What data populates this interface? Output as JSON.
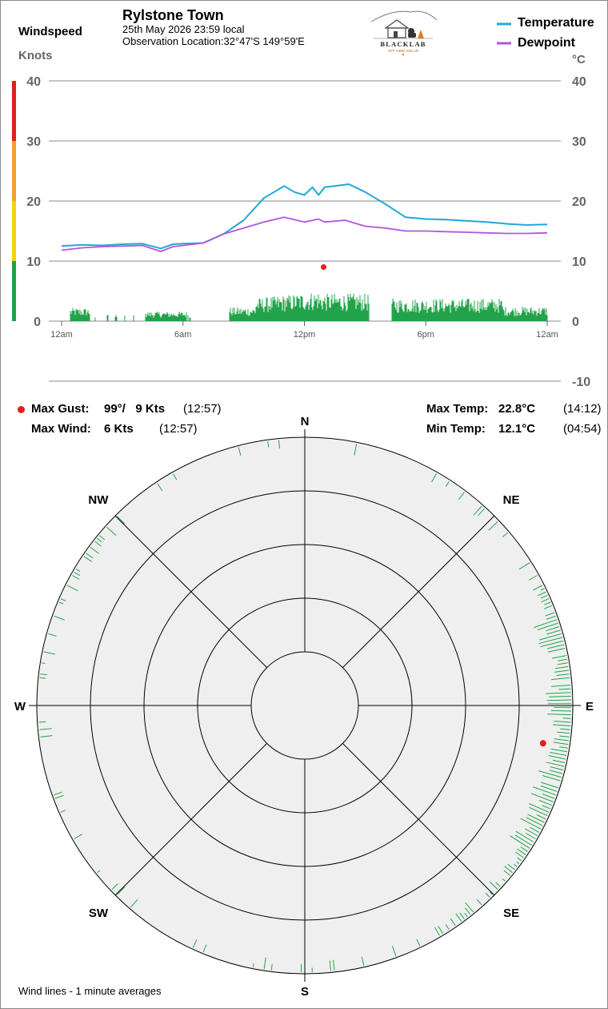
{
  "header": {
    "station": "Rylstone Town",
    "datetime": "25th May 2026  23:59 local",
    "location": "Observation Location:32°47'S 149°59'E",
    "windspeed_title": "Windspeed",
    "windspeed_unit": "Knots",
    "temp_unit": "°C",
    "logo_name": "BLACKLAB",
    "logo_sub": "OFF GRID SOLAR"
  },
  "legend": [
    {
      "label": "Temperature",
      "color": "#1fa8d8"
    },
    {
      "label": "Dewpoint",
      "color": "#b355e0"
    }
  ],
  "stats": {
    "max_gust_label": "Max Gust:",
    "max_gust_value": "99°/   9 Kts",
    "max_gust_time": "(12:57)",
    "max_wind_label": "Max Wind:",
    "max_wind_value": "6 Kts",
    "max_wind_time": "(12:57)",
    "max_temp_label": "Max Temp:",
    "max_temp_value": "22.8°C",
    "max_temp_time": "(14:12)",
    "min_temp_label": "Min Temp:",
    "min_temp_value": "12.1°C",
    "min_temp_time": "(04:54)"
  },
  "footer": {
    "note": "Wind lines - 1 minute averages"
  },
  "chart_data": [
    {
      "type": "line",
      "xlabel": "",
      "ylabel_left": "Knots",
      "ylabel_right": "°C",
      "x_ticks": [
        "12am",
        "6am",
        "12pm",
        "6pm",
        "12am"
      ],
      "x_tick_hours": [
        0,
        6,
        12,
        18,
        24
      ],
      "y_ticks_left": [
        0,
        10,
        20,
        30,
        40
      ],
      "y_ticks_right": [
        -10,
        0,
        10,
        20,
        30,
        40
      ],
      "ylim_knots": [
        0,
        40
      ],
      "ylim_temp": [
        -10,
        40
      ],
      "grid": true,
      "speed_scale_colors": [
        {
          "from": 0,
          "to": 10,
          "color": "#22a34a"
        },
        {
          "from": 10,
          "to": 20,
          "color": "#f5d400"
        },
        {
          "from": 20,
          "to": 30,
          "color": "#f0a030"
        },
        {
          "from": 30,
          "to": 40,
          "color": "#e0201c"
        }
      ],
      "series": [
        {
          "name": "Temperature",
          "color": "#1fa8d8",
          "x": [
            0,
            1,
            2,
            3,
            4,
            4.9,
            5.5,
            6,
            7,
            8,
            9,
            10,
            10.5,
            11,
            11.5,
            12,
            12.4,
            12.7,
            13,
            13.5,
            14.2,
            15,
            16,
            17,
            18,
            19,
            20,
            21,
            22,
            23,
            24
          ],
          "y": [
            12.5,
            12.7,
            12.6,
            12.8,
            12.9,
            12.1,
            12.8,
            12.9,
            13.0,
            14.5,
            16.8,
            20.5,
            21.5,
            22.5,
            21.5,
            21.0,
            22.3,
            21.0,
            22.3,
            22.5,
            22.8,
            21.5,
            19.5,
            17.3,
            17.0,
            16.9,
            16.7,
            16.5,
            16.2,
            16.0,
            16.1
          ]
        },
        {
          "name": "Dewpoint",
          "color": "#b355e0",
          "x": [
            0,
            1,
            2,
            3,
            4,
            4.9,
            5.5,
            6,
            7,
            8,
            9,
            10,
            11,
            12,
            12.7,
            13,
            14,
            15,
            16,
            17,
            18,
            19,
            20,
            21,
            22,
            23,
            24
          ],
          "y": [
            11.8,
            12.2,
            12.4,
            12.5,
            12.6,
            11.6,
            12.4,
            12.6,
            13.0,
            14.5,
            15.5,
            16.5,
            17.3,
            16.5,
            17.0,
            16.5,
            16.8,
            15.8,
            15.5,
            15.0,
            15.0,
            14.9,
            14.8,
            14.7,
            14.6,
            14.6,
            14.7
          ]
        }
      ],
      "max_gust_marker": {
        "hour": 12.95,
        "knots": 9,
        "color": "#e0201c"
      }
    },
    {
      "type": "polar",
      "directions": [
        {
          "label": "N",
          "deg": 0
        },
        {
          "label": "NE",
          "deg": 45
        },
        {
          "label": "E",
          "deg": 90
        },
        {
          "label": "SE",
          "deg": 135
        },
        {
          "label": "S",
          "deg": 180
        },
        {
          "label": "SW",
          "deg": 225
        },
        {
          "label": "W",
          "deg": 270
        },
        {
          "label": "NW",
          "deg": 315
        }
      ],
      "rings_knots": [
        2,
        4,
        6,
        8,
        10
      ],
      "gust_marker": {
        "deg": 99,
        "knots": 9,
        "color": "#e0201c"
      }
    }
  ]
}
